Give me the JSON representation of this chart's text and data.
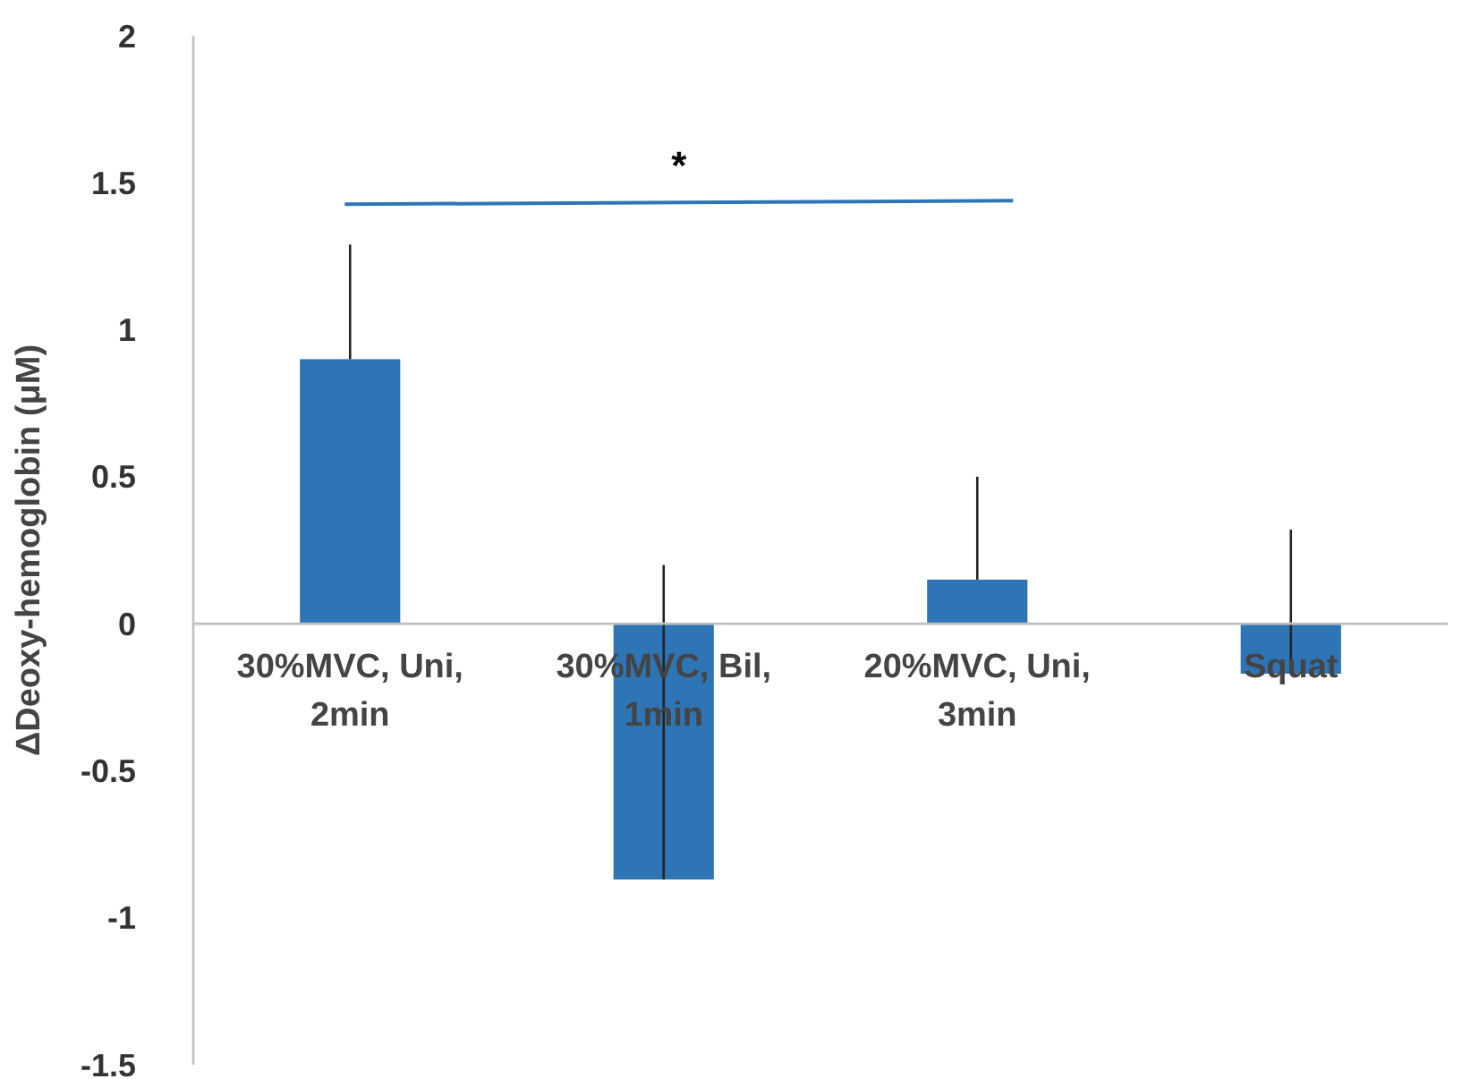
{
  "chart_data": {
    "type": "bar",
    "ylabel": "ΔDeoxy-hemoglobin (μM)",
    "categories": [
      "30%MVC, Uni, 2min",
      "30%MVC, Bil, 1min",
      "20%MVC, Uni, 3min",
      "Squat"
    ],
    "values": [
      0.9,
      -0.87,
      0.15,
      -0.17
    ],
    "color": "#2e75b6",
    "errors": [
      [
        0.9,
        1.29
      ],
      [
        -0.87,
        0.2
      ],
      [
        0.15,
        0.5
      ],
      [
        -0.17,
        0.32
      ]
    ],
    "ylim": [
      -1.5,
      2
    ],
    "yticks": [
      -1.5,
      -1,
      -0.5,
      0,
      0.5,
      1,
      1.5,
      2
    ],
    "grid": false,
    "annotations": [
      "*"
    ]
  }
}
